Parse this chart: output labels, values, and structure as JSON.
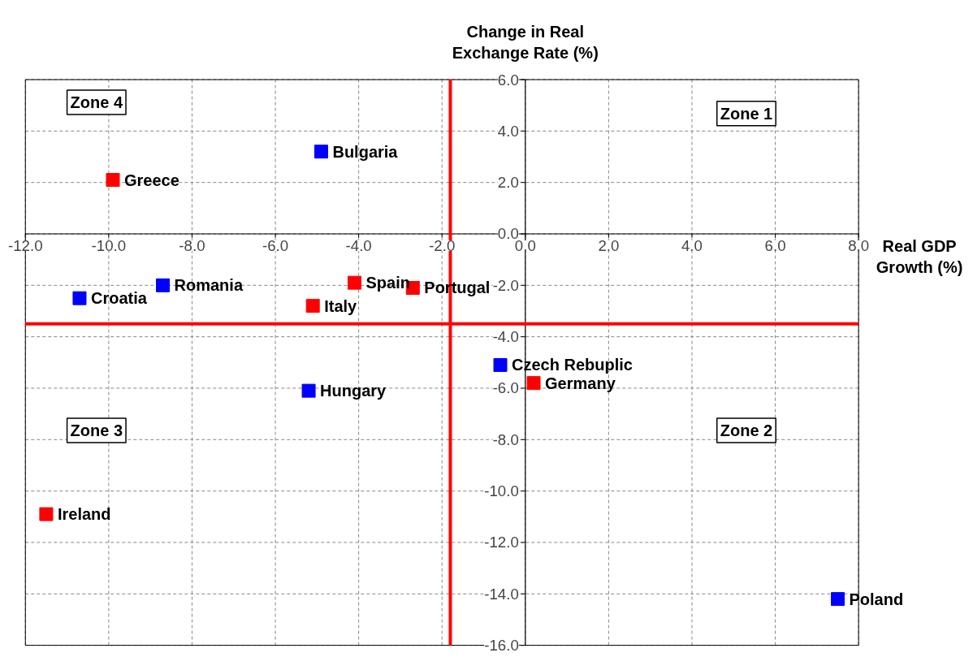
{
  "chart_data": {
    "type": "scatter",
    "xlabel": "Real GDP Growth (%)",
    "ylabel": "Change in Real Exchange Rate (%)",
    "xlim": [
      -12,
      8
    ],
    "ylim": [
      -16,
      6
    ],
    "xticks": [
      {
        "value": -12,
        "label": "-12.0"
      },
      {
        "value": -10,
        "label": "-10.0"
      },
      {
        "value": -8,
        "label": "-8.0"
      },
      {
        "value": -6,
        "label": "-6.0"
      },
      {
        "value": -4,
        "label": "-4.0"
      },
      {
        "value": -2,
        "label": "-2.0"
      },
      {
        "value": 0,
        "label": "0.0"
      },
      {
        "value": 2,
        "label": "2.0"
      },
      {
        "value": 4,
        "label": "4.0"
      },
      {
        "value": 6,
        "label": "6.0"
      },
      {
        "value": 8,
        "label": "8.0"
      }
    ],
    "yticks": [
      {
        "value": -16,
        "label": "-16.0"
      },
      {
        "value": -14,
        "label": "-14.0"
      },
      {
        "value": -12,
        "label": "-12.0"
      },
      {
        "value": -10,
        "label": "-10.0"
      },
      {
        "value": -8,
        "label": "-8.0"
      },
      {
        "value": -6,
        "label": "-6.0"
      },
      {
        "value": -4,
        "label": "-4.0"
      },
      {
        "value": -2,
        "label": "-2.0"
      },
      {
        "value": 0,
        "label": "0.0"
      },
      {
        "value": 2,
        "label": "2.0"
      },
      {
        "value": 4,
        "label": "4.0"
      },
      {
        "value": 6,
        "label": "6.0"
      }
    ],
    "grid": true,
    "marker": "square",
    "series": [
      {
        "color": "#ff0000",
        "x": [
          -9.9,
          -4.1,
          -2.7,
          -5.1,
          0.2,
          -11.5
        ],
        "values": [
          2.1,
          -1.9,
          -2.1,
          -2.8,
          -5.8,
          -10.9
        ]
      },
      {
        "color": "#0000ff",
        "x": [
          -4.9,
          -8.7,
          -10.7,
          -5.2,
          -0.6,
          7.5
        ],
        "values": [
          3.2,
          -2.0,
          -2.5,
          -6.1,
          -5.1,
          -14.2
        ]
      }
    ],
    "ref_lines": [
      {
        "axis": "x",
        "value": -1.8,
        "color": "#ff0000"
      },
      {
        "axis": "y",
        "value": -3.5,
        "color": "#ff0000"
      }
    ],
    "annotations": [
      {
        "text": "Greece",
        "x": -9.9,
        "y": 2.1
      },
      {
        "text": "Spain",
        "x": -4.1,
        "y": -1.9
      },
      {
        "text": "Portugal",
        "x": -2.7,
        "y": -2.1
      },
      {
        "text": "Italy",
        "x": -5.1,
        "y": -2.8
      },
      {
        "text": "Germany",
        "x": 0.2,
        "y": -5.8
      },
      {
        "text": "Ireland",
        "x": -11.5,
        "y": -10.9
      },
      {
        "text": "Bulgaria",
        "x": -4.9,
        "y": 3.2
      },
      {
        "text": "Romania",
        "x": -8.7,
        "y": -2.0
      },
      {
        "text": "Croatia",
        "x": -10.7,
        "y": -2.5
      },
      {
        "text": "Hungary",
        "x": -5.2,
        "y": -6.1
      },
      {
        "text": "Czech Rebuplic",
        "x": -0.6,
        "y": -5.1
      },
      {
        "text": "Poland",
        "x": 7.5,
        "y": -14.2
      },
      "Zone 4",
      "Zone 1",
      "Zone 3",
      "Zone 2"
    ]
  }
}
